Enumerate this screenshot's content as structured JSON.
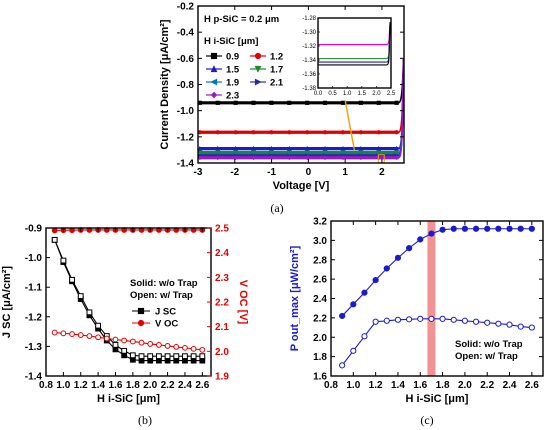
{
  "chart_data": [
    {
      "panel": "(a)",
      "type": "scatter",
      "xlabel": "Voltage [V]",
      "ylabel": "Current Density [μA/cm²]",
      "xlim": [
        -3,
        2.6
      ],
      "ylim": [
        -1.4,
        -0.2
      ],
      "xticks": [
        "-3",
        "-2",
        "-1",
        "0",
        "1",
        "2"
      ],
      "yticks": [
        "-1.4",
        "-1.2",
        "-1.0",
        "-0.8",
        "-0.6",
        "-0.4",
        "-0.2"
      ],
      "annotation": "H p-SiC = 0.2 μm",
      "legend_title": "H i-SiC [μm]",
      "series": [
        {
          "name": "0.9",
          "color": "#000000",
          "marker": "square",
          "jsc": -0.94
        },
        {
          "name": "1.2",
          "color": "#e00000",
          "marker": "circle",
          "jsc": -1.165
        },
        {
          "name": "1.5",
          "color": "#1a1ad0",
          "marker": "triangle",
          "jsc": -1.29
        },
        {
          "name": "1.7",
          "color": "#1a8a2a",
          "marker": "tri-down",
          "jsc": -1.32
        },
        {
          "name": "1.9",
          "color": "#0077bb",
          "marker": "tri-left",
          "jsc": -1.335
        },
        {
          "name": "2.1",
          "color": "#2a2aa0",
          "marker": "tri-right",
          "jsc": -1.345
        },
        {
          "name": "2.3",
          "color": "#9a1ac8",
          "marker": "diamond",
          "jsc": -1.36
        }
      ],
      "inset": {
        "xlim": [
          0,
          2.5
        ],
        "ylim": [
          -1.38,
          -1.28
        ],
        "xticks": [
          "0.0",
          "0.5",
          "1.0",
          "1.5",
          "2.0",
          "2.5"
        ],
        "yticks": [
          "-1.28",
          "-1.30",
          "-1.32",
          "-1.34",
          "-1.36",
          "-1.38"
        ],
        "levels": [
          {
            "color": "#e000e0",
            "y": -1.318
          },
          {
            "color": "#2e9a2e",
            "y": -1.338
          },
          {
            "color": "#1a1ad0",
            "y": -1.343
          },
          {
            "color": "#000000",
            "y": -1.347
          }
        ]
      }
    },
    {
      "panel": "(b)",
      "type": "line",
      "xlabel": "H i-SiC [μm]",
      "ylabel_left": "J SC [μA/cm²]",
      "ylabel_right": "V OC [V]",
      "xlim": [
        0.8,
        2.7
      ],
      "ylim_left": [
        -1.4,
        -0.9
      ],
      "ylim_right": [
        1.9,
        2.5
      ],
      "xticks": [
        "0.8",
        "1.0",
        "1.2",
        "1.4",
        "1.6",
        "1.8",
        "2.0",
        "2.2",
        "2.4",
        "2.6"
      ],
      "yticks_left": [
        "-1.4",
        "-1.3",
        "-1.2",
        "-1.1",
        "-1.0",
        "-0.9"
      ],
      "yticks_right": [
        "1.9",
        "2.0",
        "2.1",
        "2.2",
        "2.3",
        "2.4",
        "2.5"
      ],
      "legend_note_1": "Solid: w/o Trap",
      "legend_note_2": "Open: w/ Trap",
      "x": [
        0.9,
        1.0,
        1.1,
        1.2,
        1.3,
        1.4,
        1.5,
        1.6,
        1.7,
        1.8,
        1.9,
        2.0,
        2.1,
        2.2,
        2.3,
        2.4,
        2.5,
        2.6
      ],
      "series": [
        {
          "name": "J SC",
          "axis": "left",
          "style": "solid",
          "color": "#000000",
          "values": [
            -0.94,
            -1.015,
            -1.08,
            -1.14,
            -1.195,
            -1.24,
            -1.28,
            -1.31,
            -1.33,
            -1.345,
            -1.348,
            -1.348,
            -1.348,
            -1.348,
            -1.348,
            -1.348,
            -1.348,
            -1.348
          ]
        },
        {
          "name": "J SC w/ Trap",
          "axis": "left",
          "style": "open",
          "color": "#000000",
          "values": [
            -0.94,
            -1.01,
            -1.075,
            -1.13,
            -1.185,
            -1.23,
            -1.265,
            -1.295,
            -1.315,
            -1.33,
            -1.333,
            -1.333,
            -1.333,
            -1.333,
            -1.333,
            -1.333,
            -1.333,
            -1.333
          ]
        },
        {
          "name": "V OC",
          "axis": "right",
          "style": "solid",
          "color": "#e00000",
          "values": [
            2.49,
            2.491,
            2.491,
            2.492,
            2.492,
            2.492,
            2.492,
            2.492,
            2.492,
            2.492,
            2.492,
            2.492,
            2.492,
            2.492,
            2.492,
            2.492,
            2.492,
            2.492
          ]
        },
        {
          "name": "V OC w/ Trap",
          "axis": "right",
          "style": "open",
          "color": "#e00000",
          "values": [
            2.076,
            2.073,
            2.07,
            2.066,
            2.062,
            2.057,
            2.052,
            2.048,
            2.044,
            2.04,
            2.035,
            2.03,
            2.026,
            2.022,
            2.018,
            2.014,
            2.01,
            2.006
          ]
        }
      ]
    },
    {
      "panel": "(c)",
      "type": "line",
      "xlabel": "H i-SiC [μm]",
      "ylabel": "P out_max [μW/cm²]",
      "xlim": [
        0.8,
        2.7
      ],
      "ylim": [
        1.6,
        3.2
      ],
      "xticks": [
        "0.8",
        "1.0",
        "1.2",
        "1.4",
        "1.6",
        "1.8",
        "2.0",
        "2.2",
        "2.4",
        "2.6"
      ],
      "yticks": [
        "1.6",
        "1.8",
        "2.0",
        "2.2",
        "2.4",
        "2.6",
        "2.8",
        "3.0",
        "3.2"
      ],
      "highlight_x": 1.7,
      "legend_note_1": "Solid: w/o Trap",
      "legend_note_2": "Open: w/ Trap",
      "x": [
        0.9,
        1.0,
        1.1,
        1.2,
        1.3,
        1.4,
        1.5,
        1.6,
        1.7,
        1.8,
        1.9,
        2.0,
        2.1,
        2.2,
        2.3,
        2.4,
        2.5,
        2.6
      ],
      "series": [
        {
          "name": "w/o Trap",
          "style": "solid",
          "color": "#1a1ad0",
          "values": [
            2.22,
            2.34,
            2.46,
            2.59,
            2.71,
            2.82,
            2.92,
            3.01,
            3.07,
            3.11,
            3.12,
            3.12,
            3.12,
            3.12,
            3.12,
            3.12,
            3.12,
            3.12
          ]
        },
        {
          "name": "w/ Trap",
          "style": "open",
          "color": "#1a1ad0",
          "values": [
            1.71,
            1.86,
            2.01,
            2.16,
            2.17,
            2.18,
            2.185,
            2.19,
            2.19,
            2.19,
            2.18,
            2.17,
            2.16,
            2.15,
            2.14,
            2.13,
            2.11,
            2.1
          ]
        }
      ]
    }
  ],
  "captions": {
    "a": "(a)",
    "b": "(b)",
    "c": "(c)"
  }
}
